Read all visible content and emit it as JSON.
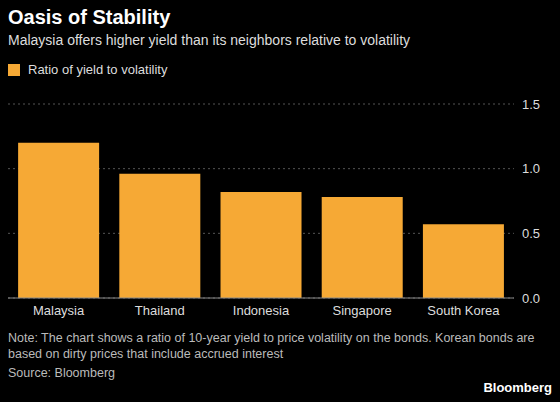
{
  "chart_data": {
    "type": "bar",
    "title": "Oasis of Stability",
    "subtitle": "Malaysia offers higher yield than its neighbors relative to volatility",
    "categories": [
      "Malaysia",
      "Thailand",
      "Indonesia",
      "Singapore",
      "South Korea"
    ],
    "series": [
      {
        "name": "Ratio of yield to volatility",
        "color": "#f6a935",
        "values": [
          1.2,
          0.96,
          0.82,
          0.78,
          0.57
        ]
      }
    ],
    "ylim": [
      0,
      1.5
    ],
    "yticks": [
      {
        "value": 0,
        "label": "0.0"
      },
      {
        "value": 0.5,
        "label": "0.5"
      },
      {
        "value": 1,
        "label": "1.0"
      },
      {
        "value": 1.5,
        "label": "1.5"
      }
    ],
    "grid": true,
    "legend": "top-left",
    "note": "Note: The chart shows a ratio of 10-year yield to price volatility on the bonds. Korean bonds are based on dirty prices that include accrued interest",
    "source": "Source: Bloomberg",
    "logo": "Bloomberg"
  }
}
